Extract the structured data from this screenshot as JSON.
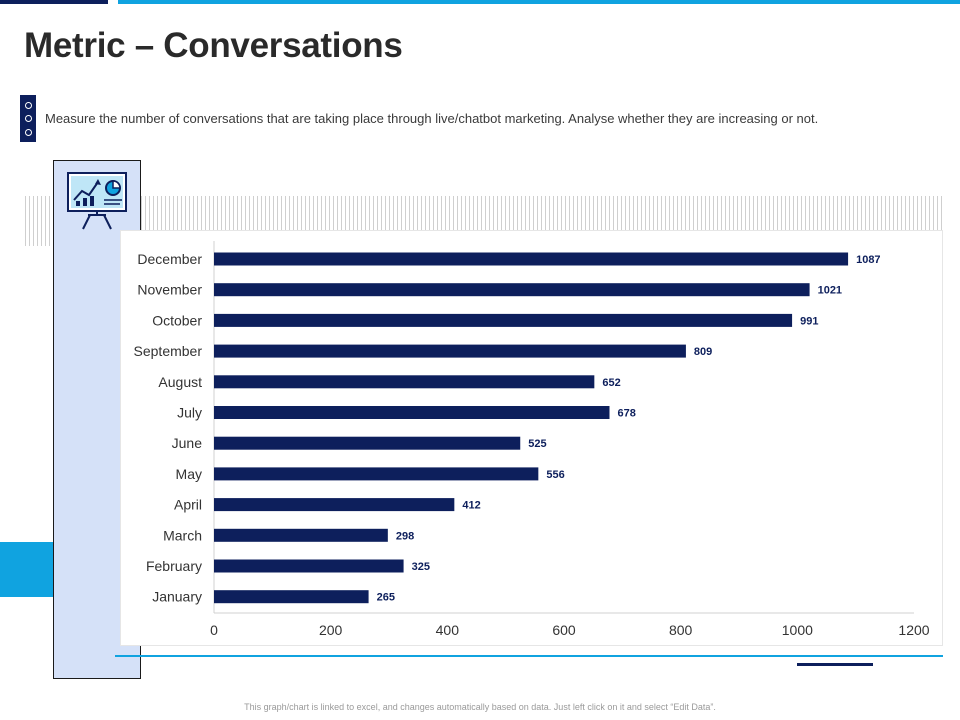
{
  "title": "Metric – Conversations",
  "description": "Measure the number of conversations that are taking place through live/chatbot marketing. Analyse whether they are increasing or not.",
  "footnote": "This graph/chart is linked to excel, and changes automatically based on data. Just left click on it and select “Edit Data”.",
  "colors": {
    "bar": "#0d1f5c",
    "accent": "#10a3e0",
    "dark": "#0d1f5c",
    "panel": "#d5e1f8"
  },
  "icons": {
    "bullet_marker": "list-dots-icon",
    "panel_icon": "presentation-board-icon"
  },
  "chart_data": {
    "type": "bar",
    "orientation": "horizontal",
    "title": "",
    "xlabel": "",
    "ylabel": "",
    "categories": [
      "December",
      "November",
      "October",
      "September",
      "August",
      "July",
      "June",
      "May",
      "April",
      "March",
      "February",
      "January"
    ],
    "values": [
      1087,
      1021,
      991,
      809,
      652,
      678,
      525,
      556,
      412,
      298,
      325,
      265
    ],
    "xlim": [
      0,
      1200
    ],
    "xticks": [
      0,
      200,
      400,
      600,
      800,
      1000,
      1200
    ],
    "grid": false,
    "data_labels": true
  }
}
